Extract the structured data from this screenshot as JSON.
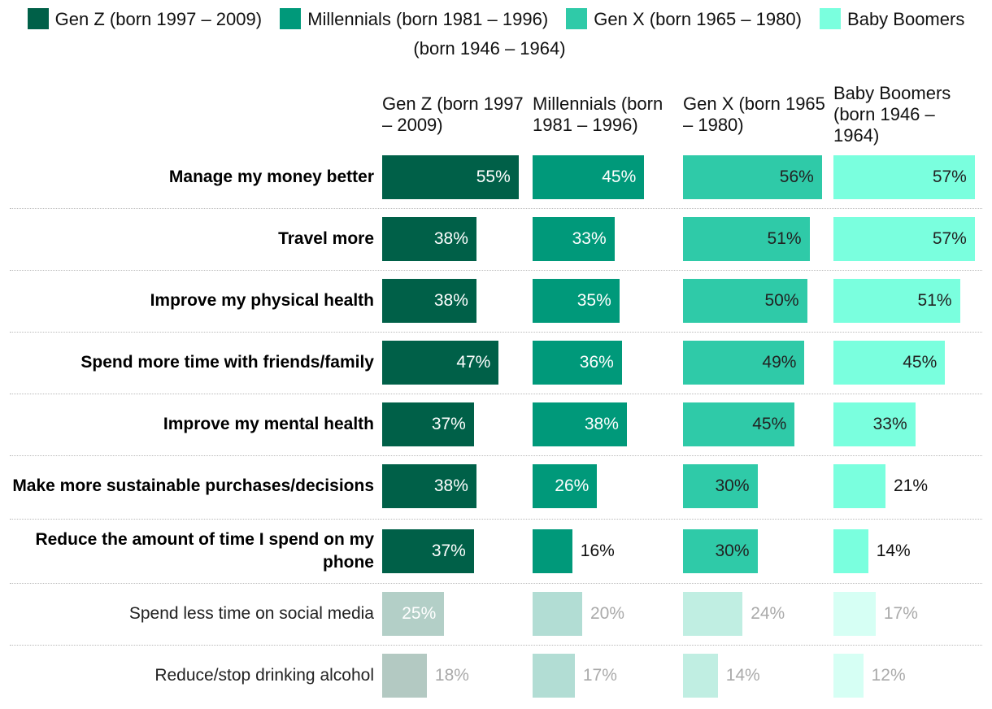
{
  "chart_data": {
    "type": "bar",
    "orientation": "horizontal",
    "categories": [
      "Manage my money better",
      "Travel more",
      "Improve my physical health",
      "Spend more time with friends/family",
      "Improve my mental health",
      "Make more sustainable purchases/decisions",
      "Reduce the amount of time I spend on my phone",
      "Spend less time on social media",
      "Reduce/stop drinking alcohol"
    ],
    "xlim": [
      0,
      60
    ],
    "series": [
      {
        "name": "Gen Z (born 1997 – 2009)",
        "color": "#006048",
        "colors": [
          "#006048",
          "#006048",
          "#006048",
          "#006048",
          "#006048",
          "#006048",
          "#006048",
          "#b3cfc7",
          "#b3c9c2"
        ],
        "values": [
          55,
          38,
          38,
          47,
          37,
          38,
          37,
          25,
          18
        ]
      },
      {
        "name": "Millennials (born 1981 – 1996)",
        "color": "#00997a",
        "colors": [
          "#00997a",
          "#00997a",
          "#00997a",
          "#00997a",
          "#00997a",
          "#00997a",
          "#00997a",
          "#b2ddd4",
          "#b2ddd4"
        ],
        "values": [
          45,
          33,
          35,
          36,
          38,
          26,
          16,
          20,
          17
        ]
      },
      {
        "name": "Gen X (born 1965 – 1980)",
        "color": "#2fcaa8",
        "colors": [
          "#2fcaa8",
          "#2fcaa8",
          "#2fcaa8",
          "#2fcaa8",
          "#2fcaa8",
          "#2fcaa8",
          "#2fcaa8",
          "#c0eee2",
          "#c0eee2"
        ],
        "values": [
          56,
          51,
          50,
          49,
          45,
          30,
          30,
          24,
          14
        ]
      },
      {
        "name": "Baby Boomers (born 1946 – 1964)",
        "color": "#7affde",
        "colors": [
          "#7affde",
          "#7affde",
          "#7affde",
          "#7affde",
          "#7affde",
          "#7affde",
          "#7affde",
          "#d6fff4",
          "#d6fff4"
        ],
        "values": [
          57,
          57,
          51,
          45,
          33,
          21,
          14,
          17,
          12
        ]
      }
    ],
    "value_labels": [
      [
        "55%",
        "38%",
        "38%",
        "47%",
        "37%",
        "38%",
        "37%",
        "25%",
        "18%"
      ],
      [
        "45%",
        "33%",
        "35%",
        "36%",
        "38%",
        "26%",
        "16%",
        "20%",
        "17%"
      ],
      [
        "56%",
        "51%",
        "50%",
        "49%",
        "45%",
        "30%",
        "30%",
        "24%",
        "14%"
      ],
      [
        "57%",
        "57%",
        "51%",
        "45%",
        "33%",
        "21%",
        "14%",
        "17%",
        "12%"
      ]
    ]
  }
}
